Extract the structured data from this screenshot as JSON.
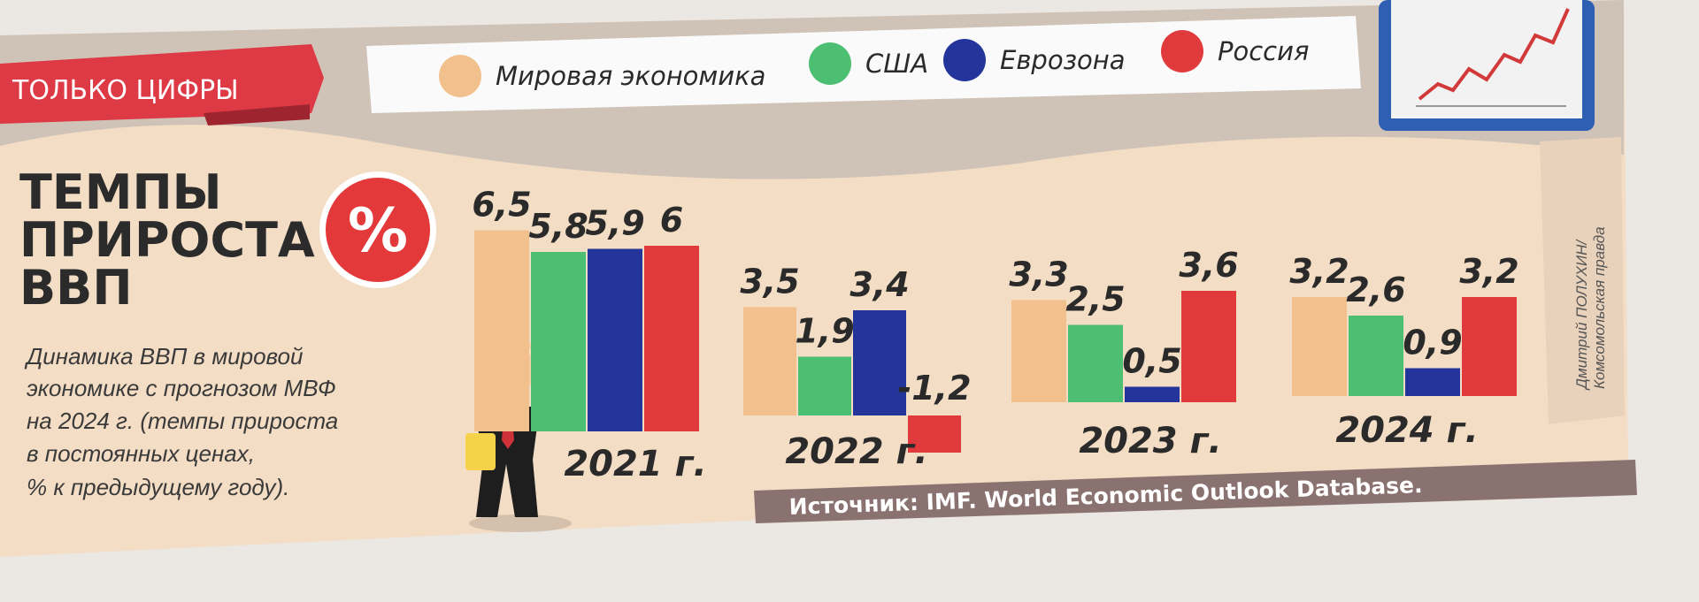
{
  "banner": {
    "label": "ТОЛЬКО ЦИФРЫ"
  },
  "title": {
    "lines": [
      "ТЕМПЫ",
      "ПРИРОСТА",
      "ВВП"
    ]
  },
  "percent_badge": {
    "symbol": "%"
  },
  "description": {
    "lines": [
      "Динамика ВВП в мировой",
      "экономике с  прогнозом МВФ",
      "на 2024 г. (темпы прироста",
      "в постоянных ценах,",
      "% к предыдущему году)."
    ]
  },
  "source": {
    "text": "Источник: IMF. World Economic Outlook Database."
  },
  "credit": {
    "lines": [
      "Дмитрий ПОЛУХИН/",
      "Комсомольская правда"
    ]
  },
  "colors": {
    "world": "#f2c08c",
    "usa": "#4cbf72",
    "eurozone": "#23349a",
    "russia": "#e03a3d",
    "banner": "#dd3a45",
    "badge": "#e4393b",
    "source_bar": "#8a7270",
    "paper": "#f3ddc4"
  },
  "chart_data": {
    "type": "bar",
    "title": "ТЕМПЫ ПРИРОСТА ВВП",
    "categories": [
      "2021 г.",
      "2022 г.",
      "2023 г.",
      "2024 г."
    ],
    "series": [
      {
        "name": "Мировая экономика",
        "values": [
          6.5,
          3.5,
          3.3,
          3.2
        ]
      },
      {
        "name": "США",
        "values": [
          5.8,
          1.9,
          2.5,
          2.6
        ]
      },
      {
        "name": "Еврозона",
        "values": [
          5.9,
          3.4,
          0.5,
          0.9
        ]
      },
      {
        "name": "Россия",
        "values": [
          6,
          -1.2,
          3.6,
          3.2
        ]
      }
    ],
    "value_labels": [
      [
        "6,5",
        "5,8",
        "5,9",
        "6"
      ],
      [
        "3,5",
        "1,9",
        "3,4",
        "-1,2"
      ],
      [
        "3,3",
        "2,5",
        "0,5",
        "3,6"
      ],
      [
        "3,2",
        "2,6",
        "0,9",
        "3,2"
      ]
    ],
    "legend_position": "top",
    "grid": false
  }
}
